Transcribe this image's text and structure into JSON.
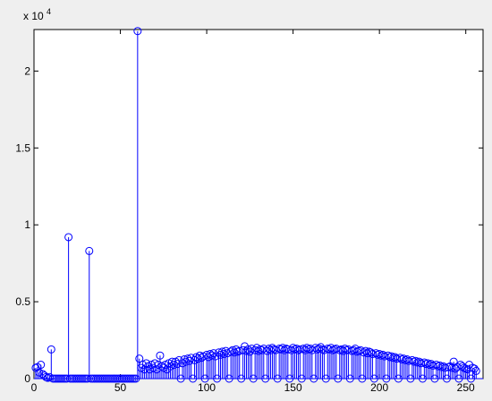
{
  "chart_data": {
    "type": "stem",
    "color": "#0000ff",
    "y_multiplier": "x 10",
    "y_multiplier_exponent": "4",
    "xlim": [
      0,
      260
    ],
    "ylim": [
      0,
      22700
    ],
    "xticks": [
      0,
      50,
      100,
      150,
      200,
      250
    ],
    "yticks": [
      0,
      {
        "value": 5000,
        "label": "0.5"
      },
      {
        "value": 10000,
        "label": "1"
      },
      {
        "value": 15000,
        "label": "1.5"
      },
      {
        "value": 20000,
        "label": "2"
      }
    ],
    "x": [
      1,
      2,
      3,
      4,
      5,
      6,
      7,
      8,
      9,
      10,
      11,
      12,
      13,
      14,
      15,
      16,
      17,
      18,
      19,
      20,
      21,
      22,
      23,
      24,
      25,
      26,
      27,
      28,
      29,
      30,
      31,
      32,
      33,
      34,
      35,
      36,
      37,
      38,
      39,
      40,
      41,
      42,
      43,
      44,
      45,
      46,
      47,
      48,
      49,
      50,
      51,
      52,
      53,
      54,
      55,
      56,
      57,
      58,
      59,
      60,
      61,
      62,
      63,
      64,
      65,
      66,
      67,
      68,
      69,
      70,
      71,
      72,
      73,
      74,
      75,
      76,
      77,
      78,
      79,
      80,
      81,
      82,
      83,
      84,
      85,
      86,
      87,
      88,
      89,
      90,
      91,
      92,
      93,
      94,
      95,
      96,
      97,
      98,
      99,
      100,
      101,
      102,
      103,
      104,
      105,
      106,
      107,
      108,
      109,
      110,
      111,
      112,
      113,
      114,
      115,
      116,
      117,
      118,
      119,
      120,
      121,
      122,
      123,
      124,
      125,
      126,
      127,
      128,
      129,
      130,
      131,
      132,
      133,
      134,
      135,
      136,
      137,
      138,
      139,
      140,
      141,
      142,
      143,
      144,
      145,
      146,
      147,
      148,
      149,
      150,
      151,
      152,
      153,
      154,
      155,
      156,
      157,
      158,
      159,
      160,
      161,
      162,
      163,
      164,
      165,
      166,
      167,
      168,
      169,
      170,
      171,
      172,
      173,
      174,
      175,
      176,
      177,
      178,
      179,
      180,
      181,
      182,
      183,
      184,
      185,
      186,
      187,
      188,
      189,
      190,
      191,
      192,
      193,
      194,
      195,
      196,
      197,
      198,
      199,
      200,
      201,
      202,
      203,
      204,
      205,
      206,
      207,
      208,
      209,
      210,
      211,
      212,
      213,
      214,
      215,
      216,
      217,
      218,
      219,
      220,
      221,
      222,
      223,
      224,
      225,
      226,
      227,
      228,
      229,
      230,
      231,
      232,
      233,
      234,
      235,
      236,
      237,
      238,
      239,
      240,
      241,
      242,
      243,
      244,
      245,
      246,
      247,
      248,
      249,
      250,
      251,
      252,
      253,
      254,
      255,
      256
    ],
    "values": [
      700,
      750,
      400,
      900,
      300,
      200,
      100,
      50,
      100,
      1900,
      0,
      0,
      0,
      0,
      0,
      0,
      0,
      0,
      0,
      9200,
      0,
      0,
      0,
      0,
      0,
      0,
      0,
      0,
      0,
      0,
      0,
      8300,
      0,
      0,
      0,
      0,
      0,
      0,
      0,
      0,
      0,
      0,
      0,
      0,
      0,
      0,
      0,
      0,
      0,
      0,
      0,
      0,
      0,
      0,
      0,
      0,
      0,
      0,
      0,
      22600,
      1300,
      700,
      900,
      600,
      1000,
      800,
      600,
      900,
      700,
      1000,
      600,
      900,
      1500,
      800,
      700,
      900,
      600,
      1000,
      800,
      1100,
      900,
      1100,
      950,
      1200,
      0,
      1000,
      1250,
      1100,
      1300,
      1150,
      1350,
      0,
      1200,
      1400,
      1300,
      1500,
      1350,
      1450,
      0,
      1550,
      1400,
      1600,
      1500,
      1650,
      1450,
      0,
      1700,
      1550,
      1750,
      1600,
      1800,
      1650,
      0,
      1750,
      1850,
      1700,
      1900,
      1750,
      1800,
      0,
      1850,
      2100,
      1800,
      1900,
      1750,
      1950,
      0,
      1850,
      2000,
      1800,
      1900,
      1850,
      1950,
      0,
      1800,
      1950,
      1850,
      2000,
      1900,
      1850,
      0,
      1950,
      1900,
      2000,
      1850,
      1950,
      1900,
      0,
      1850,
      2000,
      1900,
      1950,
      1850,
      1900,
      0,
      1950,
      1850,
      2000,
      1900,
      1950,
      1850,
      0,
      2000,
      1900,
      1950,
      2050,
      1900,
      1850,
      0,
      1950,
      1900,
      2000,
      1850,
      1900,
      1950,
      0,
      1850,
      1900,
      1800,
      1950,
      1850,
      1900,
      0,
      1800,
      1850,
      1950,
      1750,
      1800,
      1850,
      0,
      1700,
      1800,
      1650,
      1750,
      1700,
      1600,
      0,
      1650,
      1550,
      1600,
      1500,
      1550,
      1450,
      0,
      1500,
      1400,
      1450,
      1350,
      1400,
      1300,
      0,
      1350,
      1250,
      1300,
      1200,
      1250,
      1150,
      0,
      1200,
      1100,
      1150,
      1050,
      1100,
      1000,
      0,
      1050,
      950,
      1000,
      900,
      950,
      850,
      0,
      900,
      800,
      850,
      750,
      800,
      700,
      0,
      750,
      800,
      700,
      1100,
      650,
      750,
      0,
      900,
      800,
      700,
      650,
      600,
      900,
      0,
      700,
      650,
      500
    ]
  }
}
